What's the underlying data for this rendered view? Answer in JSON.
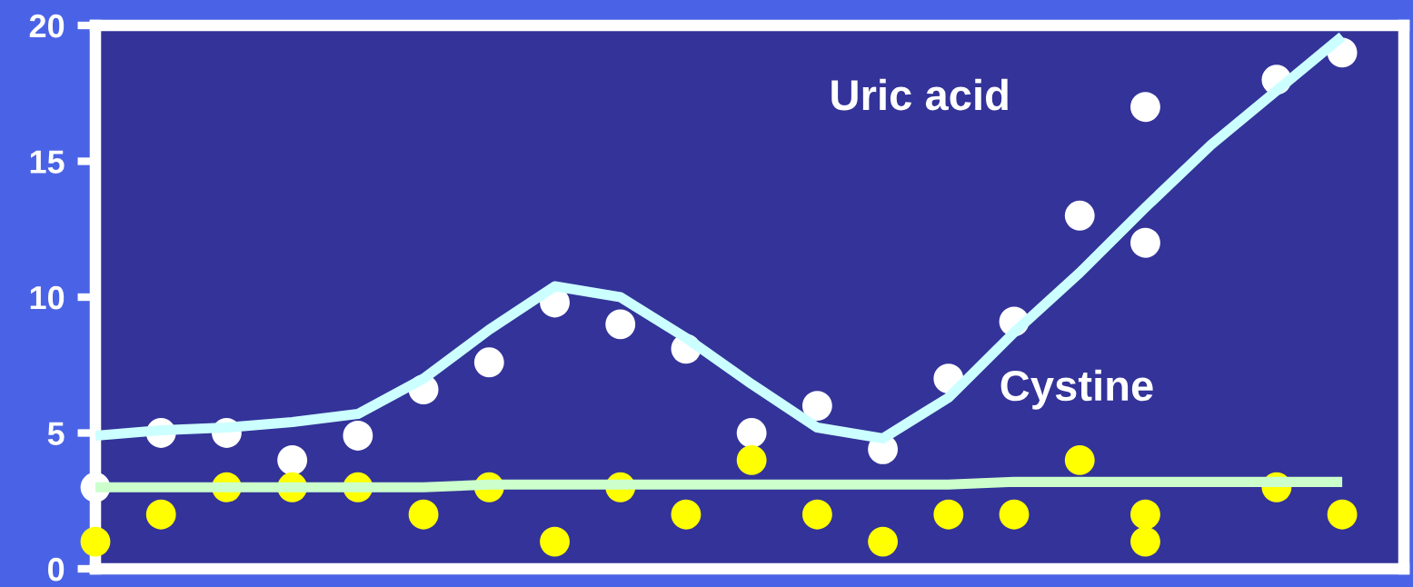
{
  "chart_data": {
    "type": "scatter",
    "categories": [
      null,
      null,
      null,
      null,
      null,
      null,
      null,
      null,
      null,
      null,
      null,
      null,
      null,
      null,
      null,
      null,
      null,
      null,
      null,
      null
    ],
    "series": [
      {
        "color": "#ffffff",
        "values": [
          3,
          5,
          5,
          4,
          4.9,
          6.6,
          7.6,
          9.8,
          9,
          8.1,
          5,
          6,
          4.4,
          7,
          9.1,
          13,
          17,
          null,
          18,
          19
        ]
      },
      {
        "color": "#ffffff",
        "values": [
          null,
          null,
          null,
          null,
          null,
          null,
          null,
          null,
          null,
          null,
          null,
          null,
          null,
          null,
          null,
          null,
          12,
          null,
          null,
          null
        ]
      },
      {
        "color": "#ffff00",
        "values": [
          1,
          2,
          3,
          3,
          3,
          2,
          3,
          1,
          3,
          2,
          4,
          2,
          1,
          2,
          2,
          4,
          2,
          null,
          3,
          2
        ]
      },
      {
        "color": "#ffff00",
        "values": [
          null,
          null,
          null,
          null,
          null,
          null,
          null,
          null,
          null,
          null,
          null,
          null,
          null,
          null,
          null,
          null,
          1,
          null,
          null,
          null
        ]
      },
      {
        "type": "line",
        "marker": "none",
        "color": "#ccffff",
        "values": [
          4.9,
          5.1,
          5.2,
          5.4,
          5.7,
          7.0,
          8.8,
          10.4,
          10.0,
          8.5,
          6.8,
          5.2,
          4.8,
          6.3,
          8.7,
          10.9,
          13.3,
          15.6,
          17.6,
          19.6
        ]
      },
      {
        "type": "line",
        "marker": "none",
        "color": "#ccffcc",
        "values": [
          3.0,
          3.0,
          3.0,
          3.0,
          3.0,
          3.0,
          3.1,
          3.1,
          3.1,
          3.1,
          3.1,
          3.1,
          3.1,
          3.1,
          3.2,
          3.2,
          3.2,
          3.2,
          3.2,
          3.2
        ]
      }
    ],
    "annotations": [
      "Uric acid",
      "Cystine"
    ],
    "ylim": [
      0,
      20
    ],
    "yticks": [
      0,
      5,
      10,
      15,
      20
    ],
    "tick_labels": "y",
    "marker": "circle",
    "grid": false,
    "legend": false
  }
}
